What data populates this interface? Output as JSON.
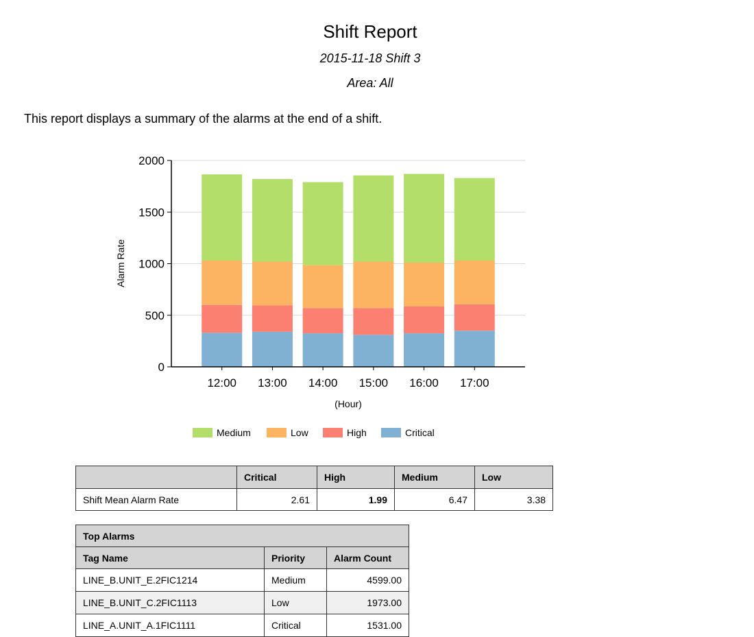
{
  "report": {
    "title": "Shift Report",
    "subtitle": "2015-11-18 Shift 3",
    "area": "Area: All",
    "description": "This report displays a summary of the alarms at the end of a shift."
  },
  "colors": {
    "medium": "#b3de69",
    "low": "#fdb462",
    "high": "#fb8072",
    "critical": "#80b1d3",
    "grid": "#d9d9d9",
    "header_bg": "#d4d4d4"
  },
  "chart_data": {
    "type": "bar",
    "stacked": true,
    "categories": [
      "12:00",
      "13:00",
      "14:00",
      "15:00",
      "16:00",
      "17:00"
    ],
    "series": [
      {
        "name": "Critical",
        "color": "#80b1d3",
        "values": [
          330,
          340,
          325,
          310,
          325,
          350
        ]
      },
      {
        "name": "High",
        "color": "#fb8072",
        "values": [
          270,
          255,
          245,
          260,
          260,
          255
        ]
      },
      {
        "name": "Low",
        "color": "#fdb462",
        "values": [
          430,
          425,
          415,
          450,
          425,
          425
        ]
      },
      {
        "name": "Medium",
        "color": "#b3de69",
        "values": [
          835,
          800,
          805,
          835,
          860,
          800
        ]
      }
    ],
    "legend_order": [
      "Medium",
      "Low",
      "High",
      "Critical"
    ],
    "xlabel": "(Hour)",
    "ylabel": "Alarm Rate",
    "ylim": [
      0,
      2000
    ],
    "yticks": [
      0,
      500,
      1000,
      1500,
      2000
    ],
    "grid": true,
    "legend_position": "bottom"
  },
  "rate_table": {
    "headers": [
      "",
      "Critical",
      "High",
      "Medium",
      "Low"
    ],
    "row_label": "Shift Mean Alarm Rate",
    "values": [
      "2.61",
      "1.99",
      "6.47",
      "3.38"
    ]
  },
  "top_alarms": {
    "title": "Top  Alarms",
    "headers": [
      "Tag Name",
      "Priority",
      "Alarm Count"
    ],
    "rows": [
      {
        "tag": "LINE_B.UNIT_E.2FIC1214",
        "priority": "Medium",
        "count": "4599.00"
      },
      {
        "tag": "LINE_B.UNIT_C.2FIC1113",
        "priority": "Low",
        "count": "1973.00"
      },
      {
        "tag": "LINE_A.UNIT_A.1FIC1111",
        "priority": "Critical",
        "count": "1531.00"
      }
    ]
  }
}
